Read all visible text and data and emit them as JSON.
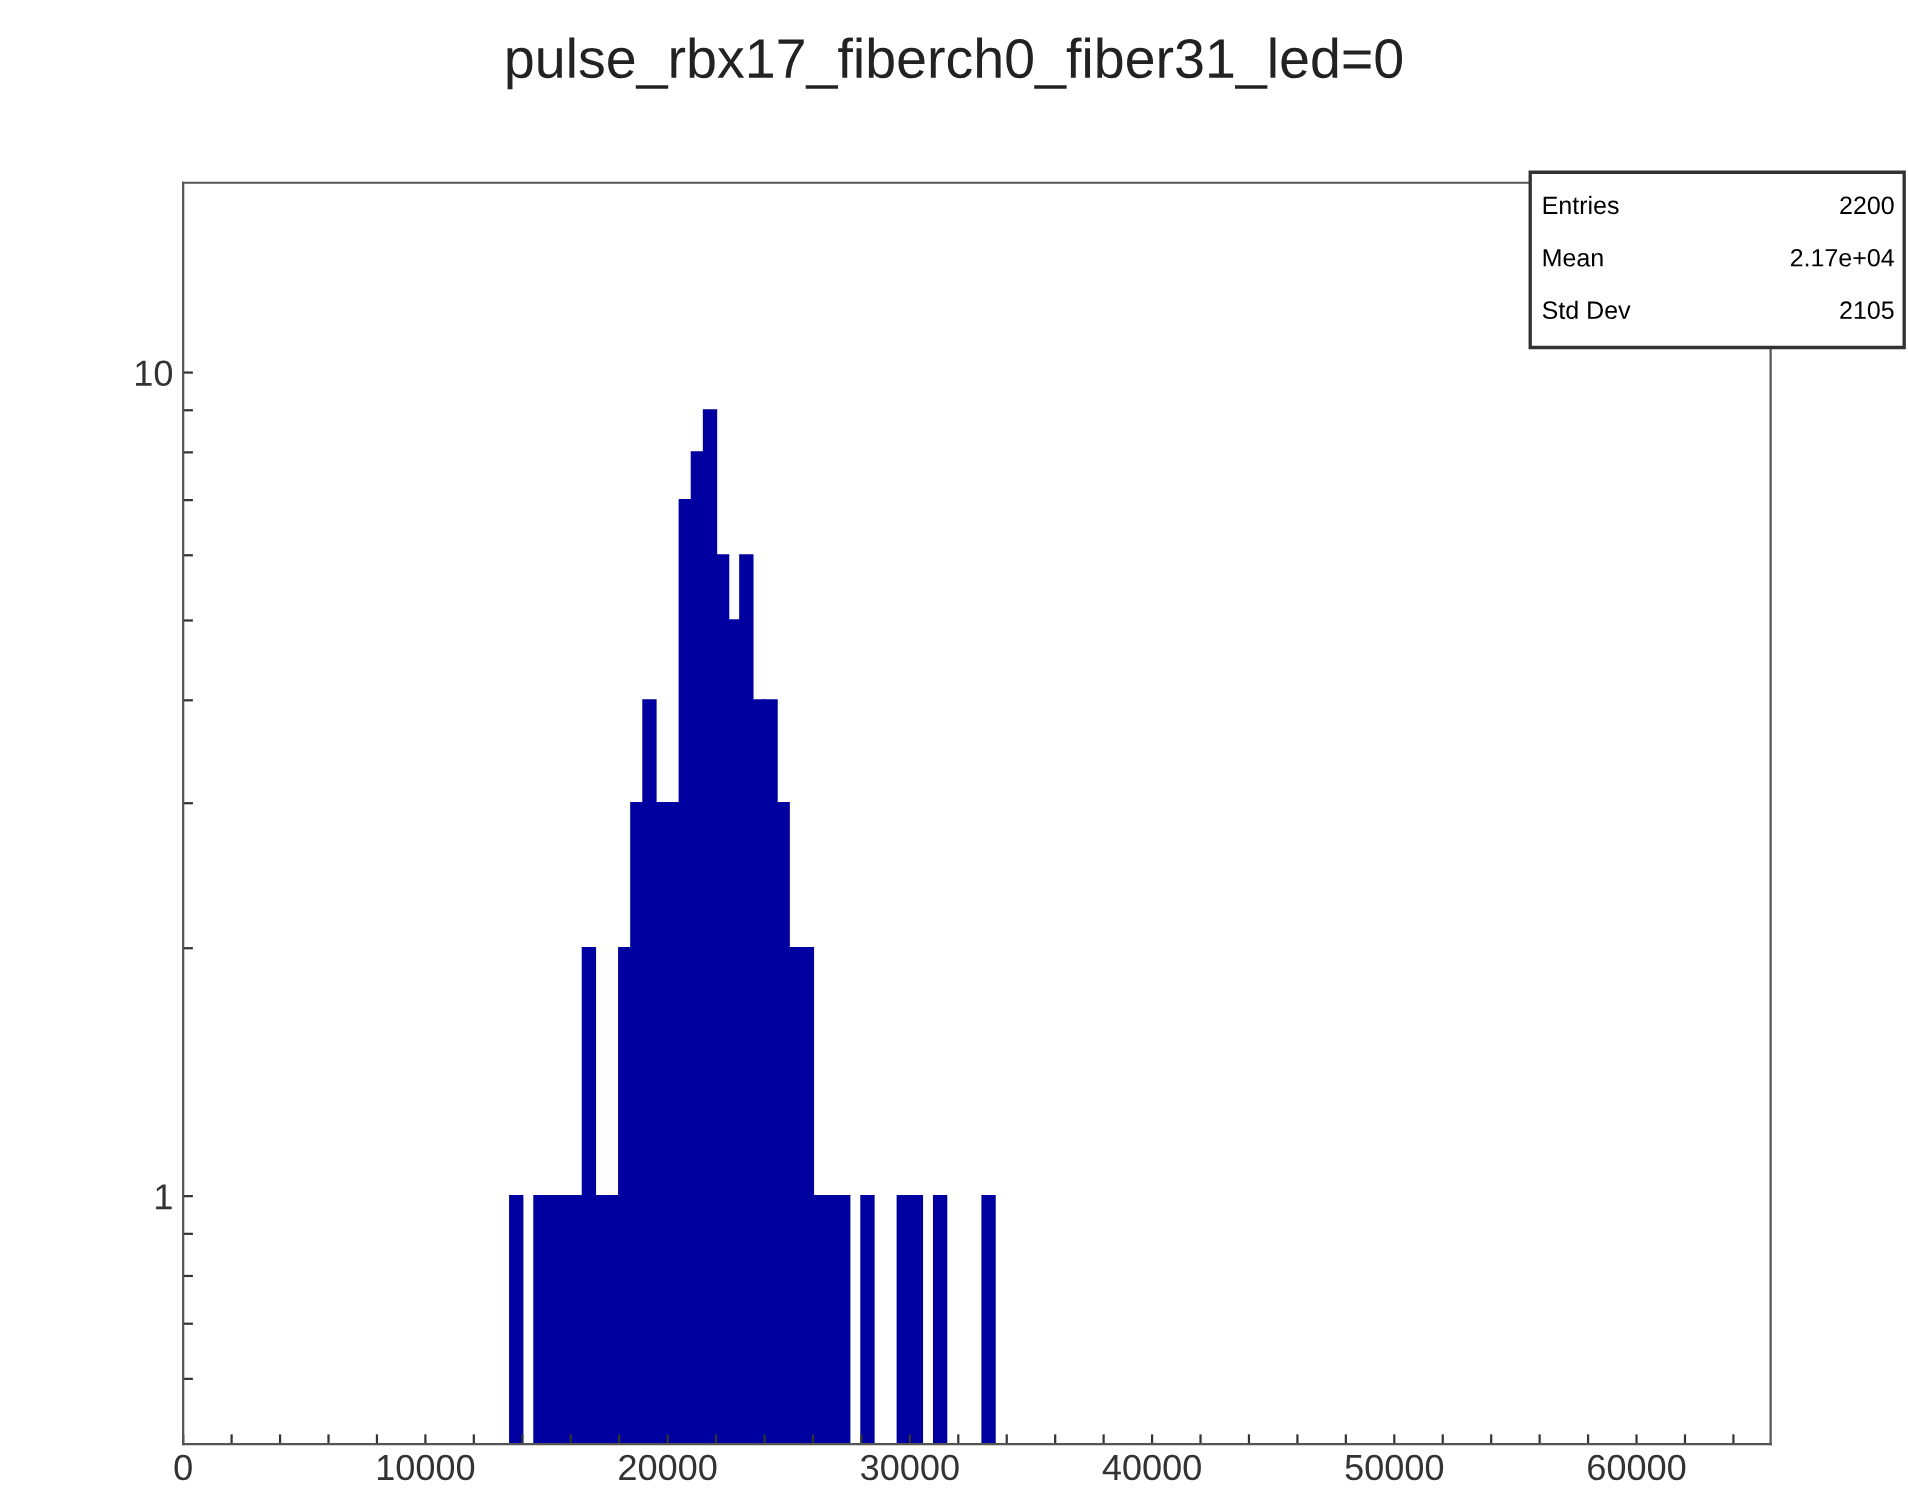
{
  "chart_data": {
    "type": "histogram",
    "title": "pulse_rbx17_fiberch0_fiber31_led=0",
    "bins": [
      13500,
      14000,
      14500,
      15000,
      15500,
      16000,
      16500,
      17000,
      17500,
      18000,
      18500,
      19000,
      19500,
      20000,
      20500,
      21000,
      21500,
      22000,
      22500,
      23000,
      23500,
      24000,
      24500,
      25000,
      25500,
      26000,
      26500,
      27000,
      27500,
      28000,
      28500,
      29000,
      29500,
      30000,
      30500,
      31000,
      31500,
      32000,
      32500,
      33000,
      33500
    ],
    "values": [
      1,
      null,
      1,
      1,
      1,
      1,
      2,
      1,
      1,
      2,
      3,
      4,
      3,
      3,
      7,
      8,
      9,
      6,
      5,
      6,
      4,
      4,
      3,
      2,
      2,
      1,
      1,
      1,
      null,
      1,
      null,
      null,
      1,
      1,
      null,
      1,
      null,
      null,
      null,
      1
    ],
    "color": "#0000a0",
    "log": "y",
    "xlim": [
      0,
      65536
    ],
    "ylim": [
      0.5,
      17
    ],
    "xticks": [
      0,
      {
        "value": 2000,
        "label": null
      },
      {
        "value": 4000,
        "label": null
      },
      {
        "value": 6000,
        "label": null
      },
      {
        "value": 8000,
        "label": null
      },
      10000,
      {
        "value": 12000,
        "label": null
      },
      {
        "value": 14000,
        "label": null
      },
      {
        "value": 16000,
        "label": null
      },
      {
        "value": 18000,
        "label": null
      },
      20000,
      {
        "value": 22000,
        "label": null
      },
      {
        "value": 24000,
        "label": null
      },
      {
        "value": 26000,
        "label": null
      },
      {
        "value": 28000,
        "label": null
      },
      30000,
      {
        "value": 32000,
        "label": null
      },
      {
        "value": 34000,
        "label": null
      },
      {
        "value": 36000,
        "label": null
      },
      {
        "value": 38000,
        "label": null
      },
      40000,
      {
        "value": 42000,
        "label": null
      },
      {
        "value": 44000,
        "label": null
      },
      {
        "value": 46000,
        "label": null
      },
      {
        "value": 48000,
        "label": null
      },
      50000,
      {
        "value": 52000,
        "label": null
      },
      {
        "value": 54000,
        "label": null
      },
      {
        "value": 56000,
        "label": null
      },
      {
        "value": 58000,
        "label": null
      },
      60000,
      {
        "value": 62000,
        "label": null
      },
      {
        "value": 64000,
        "label": null
      }
    ],
    "yticks": [
      {
        "value": 0.6,
        "label": null
      },
      {
        "value": 0.7,
        "label": null
      },
      {
        "value": 0.8,
        "label": null
      },
      {
        "value": 0.9,
        "label": null
      },
      1,
      {
        "value": 2,
        "label": null
      },
      {
        "value": 3,
        "label": null
      },
      {
        "value": 4,
        "label": null
      },
      {
        "value": 5,
        "label": null
      },
      {
        "value": 6,
        "label": null
      },
      {
        "value": 7,
        "label": null
      },
      {
        "value": 8,
        "label": null
      },
      {
        "value": 9,
        "label": null
      },
      10
    ],
    "grid": false,
    "legend": false,
    "annotations": [
      "Entries",
      "2200",
      "Mean",
      "2.17e+04",
      "Std Dev",
      "2105"
    ]
  }
}
